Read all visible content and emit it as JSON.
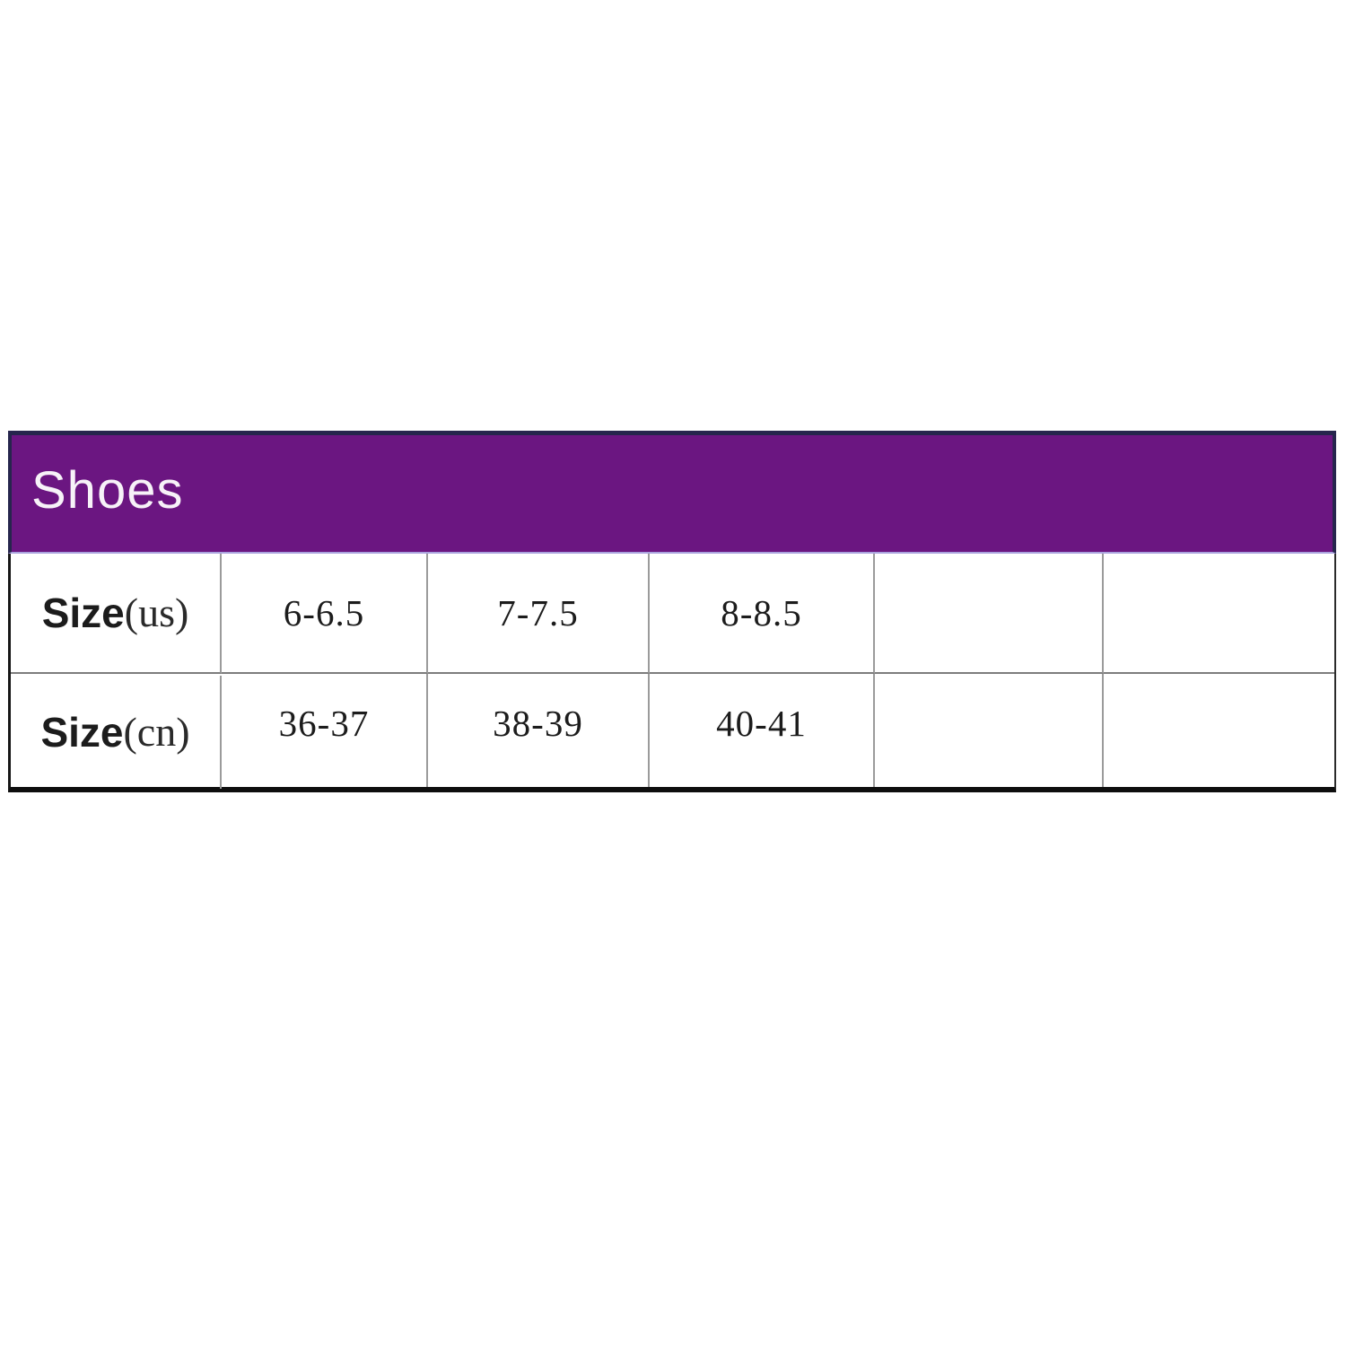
{
  "page": {
    "background": "#ffffff"
  },
  "table": {
    "title": "Shoes",
    "rows": [
      {
        "label_main": "Size",
        "label_paren": "(us)",
        "values": [
          "6-6.5",
          "7-7.5",
          "8-8.5",
          "",
          ""
        ]
      },
      {
        "label_main": "Size",
        "label_paren": "(cn)",
        "values": [
          "36-37",
          "38-39",
          "40-41",
          "",
          ""
        ]
      }
    ],
    "colors": {
      "header_bg": "#6B1681",
      "header_text": "#F7F2F8",
      "header_border": "#26254D",
      "header_underline": "#AAA3DE",
      "grid_line": "#9B9B9B",
      "row_divider": "#7D7D7D",
      "outer_border": "#141414",
      "text": "#1C1C1C"
    }
  },
  "chart_data": {
    "type": "table",
    "title": "Shoes",
    "rows": [
      [
        "Size(us)",
        "6-6.5",
        "7-7.5",
        "8-8.5",
        "",
        ""
      ],
      [
        "Size(cn)",
        "36-37",
        "38-39",
        "40-41",
        "",
        ""
      ]
    ]
  }
}
